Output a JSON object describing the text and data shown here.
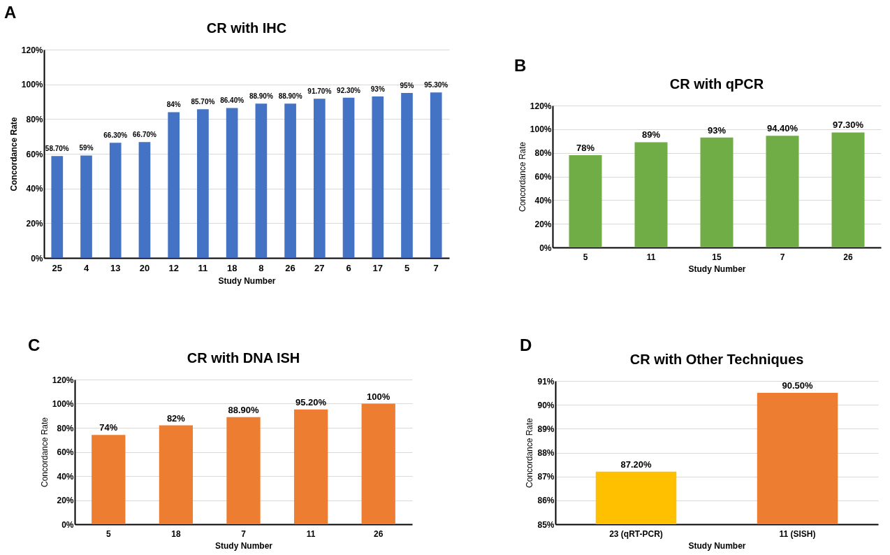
{
  "chart_data": [
    {
      "type": "bar",
      "title": "CR with IHC",
      "xlabel": "Study Number",
      "ylabel": "Concordance Rate",
      "annotations": [
        "A"
      ],
      "categories": [
        "25",
        "4",
        "13",
        "20",
        "12",
        "11",
        "18",
        "8",
        "26",
        "27",
        "6",
        "17",
        "5",
        "7"
      ],
      "values": [
        58.7,
        59,
        66.3,
        66.7,
        84,
        85.7,
        86.4,
        88.9,
        88.9,
        91.7,
        92.3,
        93,
        95,
        95.3
      ],
      "value_labels": [
        "58.70%",
        "59%",
        "66.30%",
        "66.70%",
        "84%",
        "85.70%",
        "86.40%",
        "88.90%",
        "88.90%",
        "91.70%",
        "92.30%",
        "93%",
        "95%",
        "95.30%"
      ],
      "color": "#4472c4",
      "ylim": [
        0,
        120
      ],
      "yticks": [
        {
          "value": 0,
          "label": "0%"
        },
        {
          "value": 20,
          "label": "20%"
        },
        {
          "value": 40,
          "label": "40%"
        },
        {
          "value": 60,
          "label": "60%"
        },
        {
          "value": 80,
          "label": "80%"
        },
        {
          "value": 100,
          "label": "100%"
        },
        {
          "value": 120,
          "label": "120%"
        }
      ],
      "grid": "y"
    },
    {
      "type": "bar",
      "title": "CR with qPCR",
      "xlabel": "Study Number",
      "ylabel": "Concordance Rate",
      "annotations": [
        "B"
      ],
      "categories": [
        "5",
        "11",
        "15",
        "7",
        "26"
      ],
      "values": [
        78,
        89,
        93,
        94.4,
        97.3
      ],
      "value_labels": [
        "78%",
        "89%",
        "93%",
        "94.40%",
        "97.30%"
      ],
      "color": "#70ad47",
      "ylim": [
        0,
        120
      ],
      "yticks": [
        {
          "value": 0,
          "label": "0%"
        },
        {
          "value": 20,
          "label": "20%"
        },
        {
          "value": 40,
          "label": "40%"
        },
        {
          "value": 60,
          "label": "60%"
        },
        {
          "value": 80,
          "label": "80%"
        },
        {
          "value": 100,
          "label": "100%"
        },
        {
          "value": 120,
          "label": "120%"
        }
      ],
      "grid": "y"
    },
    {
      "type": "bar",
      "title": "CR with DNA ISH",
      "xlabel": "Study Number",
      "ylabel": "Concordance Rate",
      "annotations": [
        "C"
      ],
      "categories": [
        "5",
        "18",
        "7",
        "11",
        "26"
      ],
      "values": [
        74,
        82,
        88.9,
        95.2,
        100
      ],
      "value_labels": [
        "74%",
        "82%",
        "88.90%",
        "95.20%",
        "100%"
      ],
      "color": "#ed7d31",
      "ylim": [
        0,
        120
      ],
      "yticks": [
        {
          "value": 0,
          "label": "0%"
        },
        {
          "value": 20,
          "label": "20%"
        },
        {
          "value": 40,
          "label": "40%"
        },
        {
          "value": 60,
          "label": "60%"
        },
        {
          "value": 80,
          "label": "80%"
        },
        {
          "value": 100,
          "label": "100%"
        },
        {
          "value": 120,
          "label": "120%"
        }
      ],
      "grid": "y"
    },
    {
      "type": "bar",
      "title": "CR with Other Techniques",
      "xlabel": "Study Number",
      "ylabel": "Concordance Rate",
      "annotations": [
        "D"
      ],
      "categories": [
        "23 (qRT-PCR)",
        "11 (SISH)"
      ],
      "values": [
        87.2,
        90.5
      ],
      "value_labels": [
        "87.20%",
        "90.50%"
      ],
      "colors": [
        "#ffc000",
        "#ed7d31"
      ],
      "ylim": [
        85,
        91
      ],
      "yticks": [
        {
          "value": 85,
          "label": "85%"
        },
        {
          "value": 86,
          "label": "86%"
        },
        {
          "value": 87,
          "label": "87%"
        },
        {
          "value": 88,
          "label": "88%"
        },
        {
          "value": 89,
          "label": "89%"
        },
        {
          "value": 90,
          "label": "90%"
        },
        {
          "value": 91,
          "label": "91%"
        }
      ],
      "grid": "y"
    }
  ]
}
